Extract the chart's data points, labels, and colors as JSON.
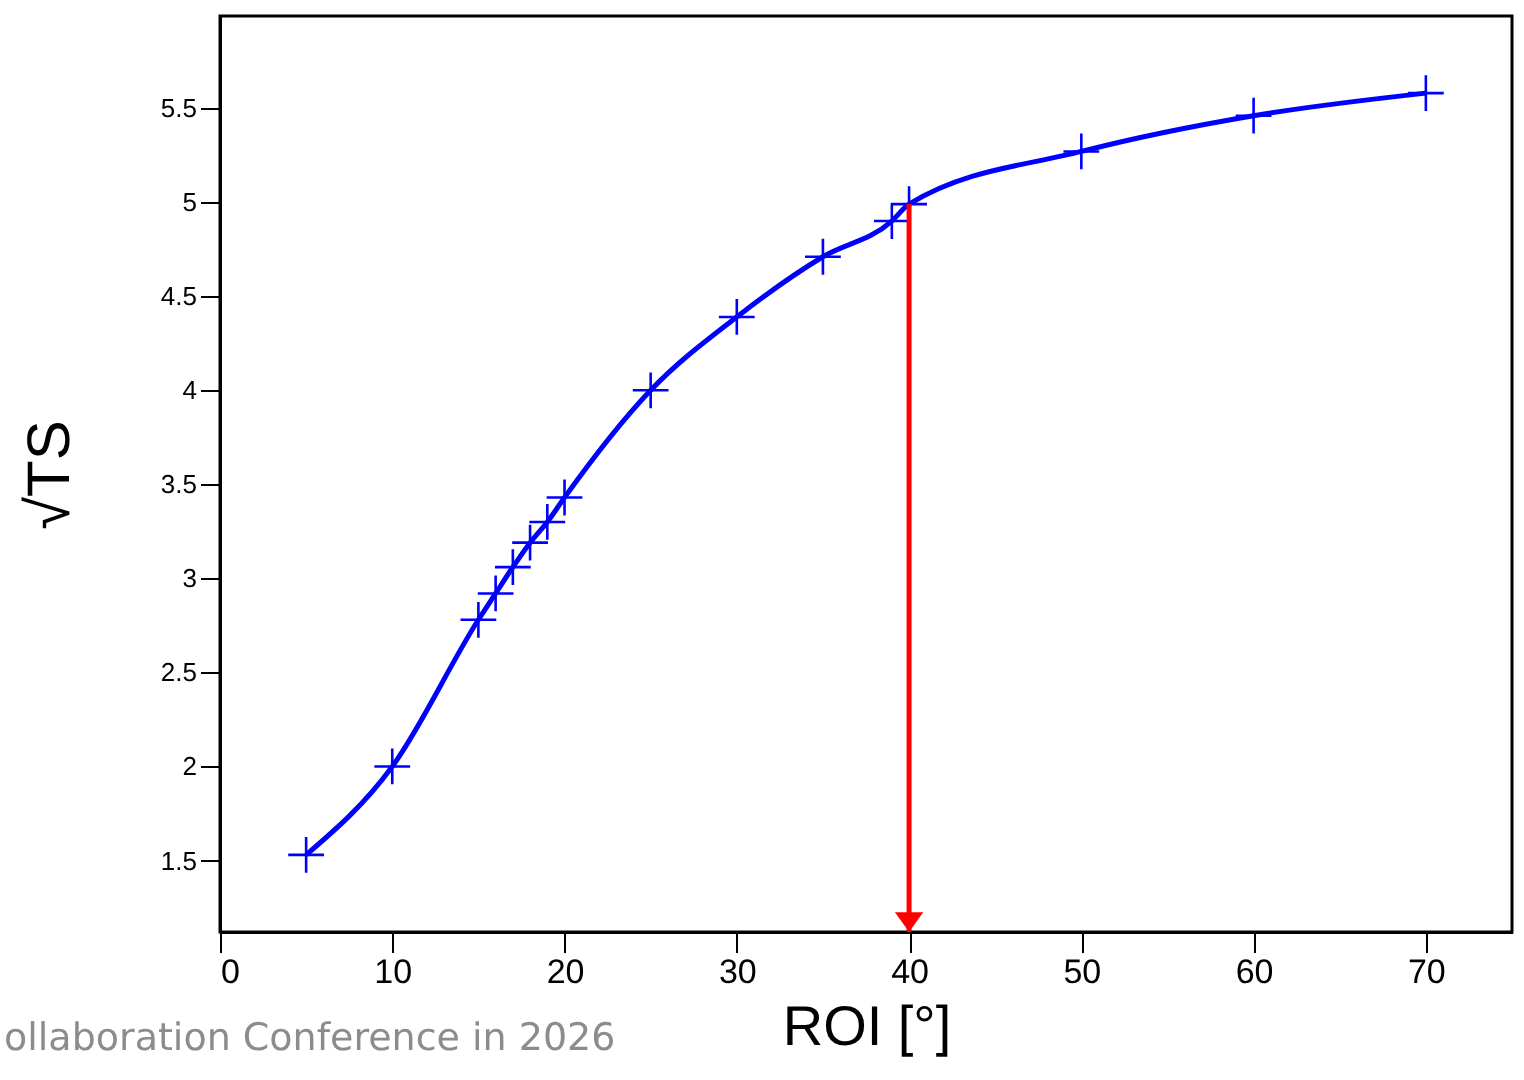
{
  "chart_data": {
    "type": "line",
    "xlabel": "ROI [°]",
    "ylabel": "√TS",
    "x": [
      5,
      10,
      15,
      16,
      17,
      18,
      19,
      20,
      25,
      30,
      35,
      39,
      40,
      50,
      60,
      70
    ],
    "series": [
      {
        "color": "#0000ff",
        "values": [
          1.53,
          2.0,
          2.78,
          2.92,
          3.06,
          3.19,
          3.3,
          3.43,
          4.0,
          4.39,
          4.71,
          4.9,
          4.99,
          5.27,
          5.46,
          5.58
        ]
      }
    ],
    "xlim": [
      0,
      75
    ],
    "xticks": [
      0,
      10,
      20,
      30,
      40,
      50,
      60,
      70
    ],
    "ylim": [
      1.12,
      5.99
    ],
    "yticks": [
      1.5,
      2,
      2.5,
      3,
      3.5,
      4,
      4.5,
      5,
      5.5
    ],
    "grid": false,
    "marker": "cross",
    "line_style": "solid",
    "ref_lines": [
      {
        "axis": "x",
        "value": 40,
        "color": "#ff0000"
      }
    ],
    "annotations": [
      "ollaboration Conference in 2026"
    ]
  }
}
